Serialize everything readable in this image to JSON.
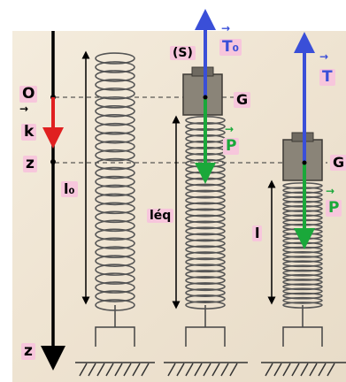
{
  "labels": {
    "origin": "O",
    "unit_vector": "k",
    "z_level": "z",
    "z_axis_bottom": "z",
    "natural_length": "l₀",
    "equilibrium_length": "léq",
    "stretched_length": "l",
    "solid": "(S)",
    "center_of_mass_1": "G",
    "center_of_mass_2": "G",
    "tension_1": "T₀",
    "tension_2": "T",
    "weight_1": "P",
    "weight_2": "P"
  },
  "colors": {
    "axis": "#000000",
    "unit_vector": "#e02020",
    "tension": "#3a4fd8",
    "weight": "#1aa83a",
    "label_bg": "#f7c6dc",
    "paper": "#f0e6d4"
  }
}
